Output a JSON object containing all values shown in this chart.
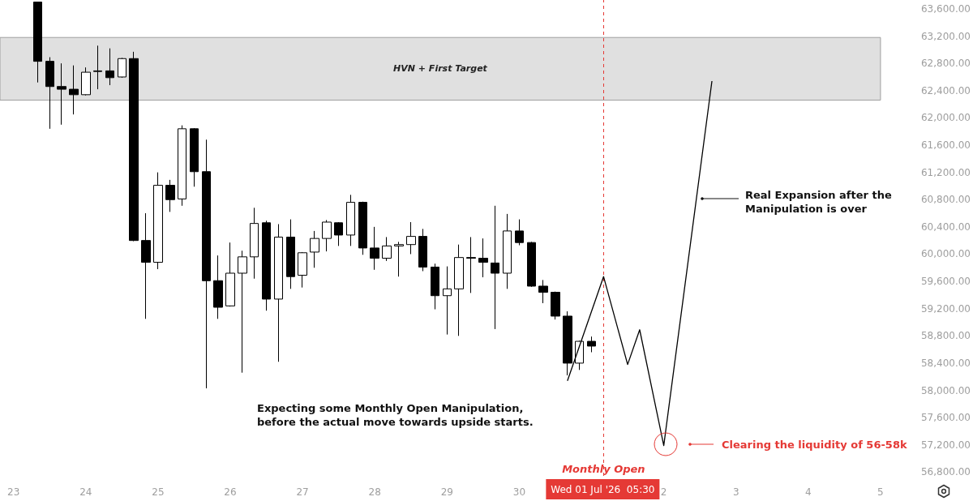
{
  "chart_data": {
    "type": "candlestick",
    "x": [
      "2026-06-23T09:30",
      "2026-06-23T13:30",
      "2026-06-23T17:30",
      "2026-06-23T21:30",
      "2026-06-24T01:30",
      "2026-06-24T05:30",
      "2026-06-24T09:30",
      "2026-06-24T13:30",
      "2026-06-24T17:30",
      "2026-06-24T21:30",
      "2026-06-25T01:30",
      "2026-06-25T05:30",
      "2026-06-25T09:30",
      "2026-06-25T13:30",
      "2026-06-25T17:30",
      "2026-06-25T21:30",
      "2026-06-26T01:30",
      "2026-06-26T05:30",
      "2026-06-26T09:30",
      "2026-06-26T13:30",
      "2026-06-26T17:30",
      "2026-06-26T21:30",
      "2026-06-27T01:30",
      "2026-06-27T05:30",
      "2026-06-27T09:30",
      "2026-06-27T13:30",
      "2026-06-27T17:30",
      "2026-06-27T21:30",
      "2026-06-28T01:30",
      "2026-06-28T05:30",
      "2026-06-28T09:30",
      "2026-06-28T13:30",
      "2026-06-28T17:30",
      "2026-06-28T21:30",
      "2026-06-29T01:30",
      "2026-06-29T05:30",
      "2026-06-29T09:30",
      "2026-06-29T13:30",
      "2026-06-29T17:30",
      "2026-06-29T21:30",
      "2026-06-30T01:30",
      "2026-06-30T05:30",
      "2026-06-30T09:30",
      "2026-06-30T13:30",
      "2026-06-30T17:30",
      "2026-06-30T21:30",
      "2026-07-01T01:30"
    ],
    "ohlc": [
      [
        63700,
        63700,
        62520,
        62830
      ],
      [
        62830,
        62890,
        61840,
        62460
      ],
      [
        62460,
        62800,
        61900,
        62420
      ],
      [
        62420,
        62770,
        62050,
        62340
      ],
      [
        62340,
        62740,
        62330,
        62670
      ],
      [
        62680,
        63060,
        62420,
        62690
      ],
      [
        62690,
        63020,
        62480,
        62590
      ],
      [
        62600,
        62880,
        62590,
        62870
      ],
      [
        62870,
        62970,
        60190,
        60200
      ],
      [
        60200,
        60600,
        59050,
        59880
      ],
      [
        59880,
        61200,
        59780,
        61010
      ],
      [
        61010,
        61090,
        60620,
        60800
      ],
      [
        60810,
        61890,
        60710,
        61840
      ],
      [
        61840,
        61850,
        60990,
        61210
      ],
      [
        61210,
        61680,
        58030,
        59610
      ],
      [
        59610,
        59980,
        59050,
        59220
      ],
      [
        59240,
        60170,
        59230,
        59720
      ],
      [
        59720,
        60050,
        58260,
        59960
      ],
      [
        59960,
        60680,
        59640,
        60450
      ],
      [
        60460,
        60490,
        59170,
        59340
      ],
      [
        59340,
        60440,
        58420,
        60250
      ],
      [
        60250,
        60510,
        59490,
        59670
      ],
      [
        59690,
        60030,
        59510,
        60020
      ],
      [
        60030,
        60340,
        59800,
        60230
      ],
      [
        60230,
        60500,
        60040,
        60470
      ],
      [
        60460,
        60470,
        60120,
        60280
      ],
      [
        60280,
        60870,
        60120,
        60760
      ],
      [
        60760,
        60770,
        59990,
        60090
      ],
      [
        60090,
        60400,
        59770,
        59940
      ],
      [
        59940,
        60250,
        59900,
        60120
      ],
      [
        60120,
        60180,
        59670,
        60140
      ],
      [
        60140,
        60470,
        60000,
        60260
      ],
      [
        60260,
        60370,
        59750,
        59810
      ],
      [
        59810,
        59860,
        59190,
        59390
      ],
      [
        59390,
        59820,
        58820,
        59490
      ],
      [
        59490,
        60140,
        58800,
        59950
      ],
      [
        59950,
        60250,
        59430,
        59940
      ],
      [
        59940,
        60230,
        59660,
        59880
      ],
      [
        59870,
        60710,
        58900,
        59720
      ],
      [
        59720,
        60590,
        59490,
        60340
      ],
      [
        60340,
        60510,
        60130,
        60170
      ],
      [
        60170,
        60180,
        59520,
        59530
      ],
      [
        59530,
        59620,
        59280,
        59440
      ],
      [
        59440,
        59450,
        59040,
        59090
      ],
      [
        59090,
        59160,
        58220,
        58400
      ],
      [
        58400,
        58730,
        58300,
        58720
      ],
      [
        58720,
        58790,
        58560,
        58650
      ]
    ],
    "series": [
      {
        "type": "line",
        "color": "#000000",
        "x": [
          "2026-06-30T17:30",
          "2026-07-01T05:30",
          "2026-07-01T13:30",
          "2026-07-01T17:30",
          "2026-07-02T01:30",
          "2026-07-02T17:30"
        ],
        "values": [
          58140,
          59670,
          58380,
          58890,
          57190,
          62540
        ]
      }
    ],
    "xlim": [
      "2026-06-22T21:00",
      "2026-07-05T01:30"
    ],
    "xticks": [
      {
        "value": "2026-06-23T01:30",
        "label": "23"
      },
      {
        "value": "2026-06-24T01:30",
        "label": "24"
      },
      {
        "value": "2026-06-25T01:30",
        "label": "25"
      },
      {
        "value": "2026-06-26T01:30",
        "label": "26"
      },
      {
        "value": "2026-06-27T01:30",
        "label": "27"
      },
      {
        "value": "2026-06-28T01:30",
        "label": "28"
      },
      {
        "value": "2026-06-29T01:30",
        "label": "29"
      },
      {
        "value": "2026-06-30T01:30",
        "label": "30"
      },
      {
        "value": "2026-07-02T01:30",
        "label": "2"
      },
      {
        "value": "2026-07-03T01:30",
        "label": "3"
      },
      {
        "value": "2026-07-04T01:30",
        "label": "4"
      },
      {
        "value": "2026-07-05T01:30",
        "label": "5"
      }
    ],
    "ylim": [
      56650,
      63730
    ],
    "yticks": [
      {
        "value": 56800,
        "label": "56,800.00"
      },
      {
        "value": 57200,
        "label": "57,200.00"
      },
      {
        "value": 57600,
        "label": "57,600.00"
      },
      {
        "value": 58000,
        "label": "58,000.00"
      },
      {
        "value": 58400,
        "label": "58,400.00"
      },
      {
        "value": 58800,
        "label": "58,800.00"
      },
      {
        "value": 59200,
        "label": "59,200.00"
      },
      {
        "value": 59600,
        "label": "59,600.00"
      },
      {
        "value": 60000,
        "label": "60,000.00"
      },
      {
        "value": 60400,
        "label": "60,400.00"
      },
      {
        "value": 60800,
        "label": "60,800.00"
      },
      {
        "value": 61200,
        "label": "61,200.00"
      },
      {
        "value": 61600,
        "label": "61,600.00"
      },
      {
        "value": 62000,
        "label": "62,000.00"
      },
      {
        "value": 62400,
        "label": "62,400.00"
      },
      {
        "value": 62800,
        "label": "62,800.00"
      },
      {
        "value": 63200,
        "label": "63,200.00"
      },
      {
        "value": 63600,
        "label": "63,600.00"
      }
    ],
    "bands": [
      {
        "axis": "y",
        "from": 62260,
        "to": 63180,
        "label": "HVN + First Target",
        "color": "#e0e0e0"
      }
    ],
    "ref_lines": [
      {
        "axis": "x",
        "value": "2026-07-01T05:30",
        "label": "Monthly Open",
        "color": "#e53935",
        "line_style": "dashed"
      }
    ],
    "annotations": [
      "Wed 01 Jul '26  05:30",
      "Expecting some Monthly Open Manipulation,\nbefore the actual move towards upside starts.",
      "Real Expansion after the\nManipulation is over",
      "Clearing the liquidity of 56-58k"
    ],
    "grid": false,
    "marker": "none"
  }
}
